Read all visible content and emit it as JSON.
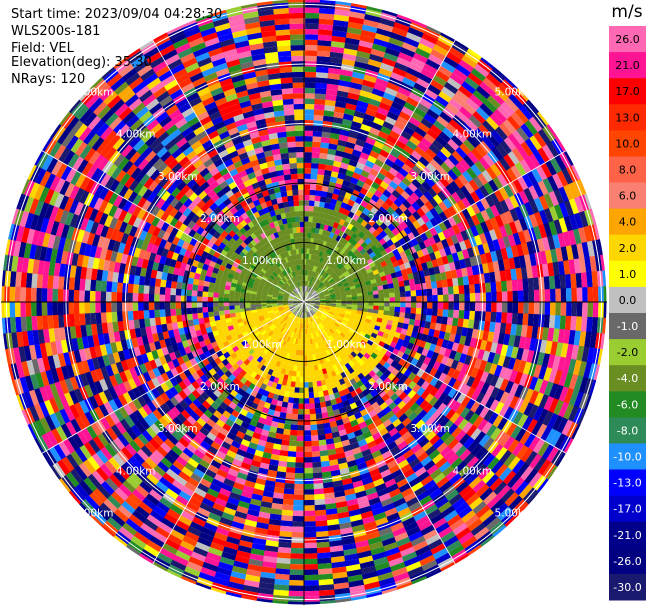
{
  "info": {
    "start_time": "Start time: 2023/09/04 04:28:30",
    "instrument": "WLS200s-181",
    "field": "Field: VEL",
    "elevation": "Elevation(deg): 35.30",
    "nrays": "NRays: 120"
  },
  "chart_data": {
    "type": "heatmap",
    "projection": "polar-ppi",
    "field": "VEL",
    "units": "m/s",
    "n_rays": 120,
    "range_ring_labels": [
      "1.00km",
      "2.00km",
      "3.00km",
      "4.00km",
      "5.00km"
    ],
    "colorbar": {
      "title": "m/s",
      "tick_labels": [
        "26.0",
        "21.0",
        "17.0",
        "13.0",
        "10.0",
        "8.0",
        "6.0",
        "4.0",
        "2.0",
        "1.0",
        "0.0",
        "-1.0",
        "-2.0",
        "-4.0",
        "-6.0",
        "-8.0",
        "-10.0",
        "-13.0",
        "-17.0",
        "-21.0",
        "-26.0",
        "-30.0"
      ],
      "bins": [
        {
          "min": 26.0,
          "max": 30.0,
          "color": "#ff69b4"
        },
        {
          "min": 21.0,
          "max": 26.0,
          "color": "#ff1493"
        },
        {
          "min": 17.0,
          "max": 21.0,
          "color": "#ff0000"
        },
        {
          "min": 13.0,
          "max": 17.0,
          "color": "#ff2a00"
        },
        {
          "min": 10.0,
          "max": 13.0,
          "color": "#ff4500"
        },
        {
          "min": 8.0,
          "max": 10.0,
          "color": "#ff6347"
        },
        {
          "min": 6.0,
          "max": 8.0,
          "color": "#fa8072"
        },
        {
          "min": 4.0,
          "max": 6.0,
          "color": "#ffa500"
        },
        {
          "min": 2.0,
          "max": 4.0,
          "color": "#ffd700"
        },
        {
          "min": 1.0,
          "max": 2.0,
          "color": "#ffff00"
        },
        {
          "min": 0.0,
          "max": 1.0,
          "color": "#c0c0c0"
        },
        {
          "min": -1.0,
          "max": 0.0,
          "color": "#696969"
        },
        {
          "min": -2.0,
          "max": -1.0,
          "color": "#9acd32"
        },
        {
          "min": -4.0,
          "max": -2.0,
          "color": "#6b8e23"
        },
        {
          "min": -6.0,
          "max": -4.0,
          "color": "#228b22"
        },
        {
          "min": -8.0,
          "max": -6.0,
          "color": "#2e8b57"
        },
        {
          "min": -10.0,
          "max": -8.0,
          "color": "#1e90ff"
        },
        {
          "min": -13.0,
          "max": -10.0,
          "color": "#0000ff"
        },
        {
          "min": -17.0,
          "max": -13.0,
          "color": "#0000cd"
        },
        {
          "min": -21.0,
          "max": -17.0,
          "color": "#00008b"
        },
        {
          "min": -26.0,
          "max": -21.0,
          "color": "#000080"
        },
        {
          "min": -30.0,
          "max": -26.0,
          "color": "#191970"
        }
      ]
    },
    "pattern": {
      "near_range_km": 1.6,
      "north_sector_mean": -3.0,
      "south_sector_mean": 3.0,
      "far_range": "mixed noise across all velocity bins"
    }
  }
}
